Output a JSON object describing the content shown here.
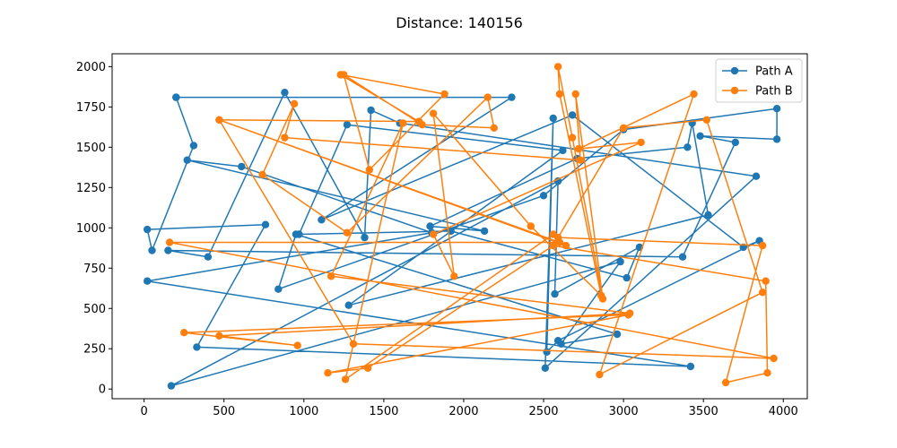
{
  "chart_data": {
    "type": "line",
    "title": "Distance: 140156",
    "xlabel": "",
    "ylabel": "",
    "xlim": [
      -200,
      4150
    ],
    "ylim": [
      -60,
      2080
    ],
    "xticks": [
      0,
      500,
      1000,
      1500,
      2000,
      2500,
      3000,
      3500,
      4000
    ],
    "yticks": [
      0,
      250,
      500,
      750,
      1000,
      1250,
      1500,
      1750,
      2000
    ],
    "grid": false,
    "legend_position": "top-right",
    "series": [
      {
        "name": "Path A",
        "color": "#1f77b4",
        "marker": "circle",
        "points": [
          [
            200,
            1810
          ],
          [
            2300,
            1810
          ],
          [
            1110,
            1050
          ],
          [
            2680,
            1700
          ],
          [
            3750,
            880
          ],
          [
            3850,
            920
          ],
          [
            2590,
            300
          ],
          [
            2520,
            230
          ],
          [
            2560,
            1680
          ],
          [
            2510,
            130
          ],
          [
            3830,
            1320
          ],
          [
            1600,
            1650
          ],
          [
            1420,
            1730
          ],
          [
            1380,
            940
          ],
          [
            880,
            1840
          ],
          [
            400,
            820
          ],
          [
            150,
            860
          ],
          [
            3370,
            820
          ],
          [
            3700,
            1530
          ],
          [
            3480,
            1570
          ],
          [
            3960,
            1550
          ],
          [
            3960,
            1740
          ],
          [
            3000,
            1610
          ],
          [
            2500,
            1200
          ],
          [
            840,
            620
          ],
          [
            950,
            960
          ],
          [
            2960,
            340
          ],
          [
            2610,
            280
          ],
          [
            2980,
            790
          ],
          [
            170,
            20
          ],
          [
            2590,
            1290
          ],
          [
            2570,
            590
          ],
          [
            3100,
            880
          ],
          [
            3020,
            690
          ],
          [
            1920,
            980
          ],
          [
            970,
            960
          ],
          [
            1270,
            1640
          ],
          [
            2620,
            1480
          ],
          [
            1280,
            520
          ],
          [
            3530,
            1080
          ],
          [
            3430,
            1650
          ],
          [
            3400,
            1500
          ],
          [
            2710,
            1430
          ],
          [
            1790,
            1010
          ],
          [
            2130,
            980
          ],
          [
            270,
            1420
          ],
          [
            610,
            1380
          ],
          [
            1800,
            970
          ],
          [
            20,
            670
          ],
          [
            3420,
            140
          ],
          [
            330,
            260
          ],
          [
            760,
            1020
          ],
          [
            20,
            990
          ],
          [
            50,
            860
          ],
          [
            310,
            1510
          ],
          [
            200,
            1810
          ]
        ]
      },
      {
        "name": "Path B",
        "color": "#ff7f0e",
        "marker": "circle",
        "points": [
          [
            1230,
            1950
          ],
          [
            1880,
            1830
          ],
          [
            1410,
            1360
          ],
          [
            1250,
            1950
          ],
          [
            1740,
            1640
          ],
          [
            2190,
            1620
          ],
          [
            2150,
            1810
          ],
          [
            1270,
            970
          ],
          [
            740,
            1330
          ],
          [
            940,
            1770
          ],
          [
            880,
            1560
          ],
          [
            2730,
            1420
          ],
          [
            2700,
            1830
          ],
          [
            2870,
            560
          ],
          [
            2680,
            1560
          ],
          [
            2590,
            2000
          ],
          [
            2600,
            1830
          ],
          [
            2860,
            580
          ],
          [
            2420,
            1010
          ],
          [
            1810,
            1710
          ],
          [
            1940,
            700
          ],
          [
            1810,
            960
          ],
          [
            3110,
            1530
          ],
          [
            2720,
            1490
          ],
          [
            3440,
            1830
          ],
          [
            2850,
            90
          ],
          [
            3870,
            600
          ],
          [
            3520,
            1670
          ],
          [
            3000,
            1620
          ],
          [
            2590,
            940
          ],
          [
            3870,
            890
          ],
          [
            3640,
            40
          ],
          [
            3900,
            100
          ],
          [
            3890,
            670
          ],
          [
            2560,
            890
          ],
          [
            1400,
            130
          ],
          [
            1150,
            100
          ],
          [
            3030,
            460
          ],
          [
            250,
            350
          ],
          [
            960,
            270
          ],
          [
            470,
            330
          ],
          [
            3040,
            470
          ],
          [
            1170,
            700
          ],
          [
            1620,
            1650
          ],
          [
            1260,
            60
          ],
          [
            2560,
            960
          ],
          [
            2640,
            890
          ],
          [
            470,
            1670
          ],
          [
            1310,
            280
          ],
          [
            3940,
            190
          ],
          [
            160,
            910
          ],
          [
            2600,
            910
          ],
          [
            470,
            1670
          ],
          [
            1720,
            1660
          ],
          [
            1230,
            1950
          ]
        ]
      }
    ]
  }
}
